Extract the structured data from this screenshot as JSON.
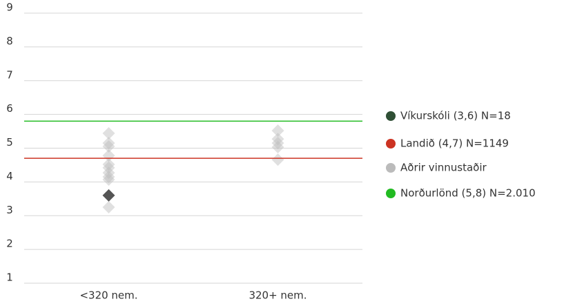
{
  "chart_data": {
    "type": "scatter",
    "categories": [
      "<320 nem.",
      "320+ nem."
    ],
    "ylim": [
      1,
      9
    ],
    "yticks": [
      1,
      2,
      3,
      4,
      5,
      6,
      7,
      8,
      9
    ],
    "grid": true,
    "series": [
      {
        "name": "Víkurskóli (3,6) N=18",
        "kind": "points",
        "color": "#555555",
        "legend_color": "#2f4f35",
        "values": [
          [
            3.6
          ],
          []
        ]
      },
      {
        "name": "Landið (4,7) N=1149",
        "kind": "line",
        "color": "#cc3322",
        "value": 4.7
      },
      {
        "name": "Aðrir vinnustaðir",
        "kind": "points",
        "color": "#bbbbbb",
        "values": [
          [
            5.44,
            5.15,
            5.05,
            4.78,
            4.52,
            4.42,
            4.27,
            4.15,
            4.07,
            3.25
          ],
          [
            5.52,
            5.27,
            5.15,
            5.03,
            4.66
          ]
        ]
      },
      {
        "name": "Norðurlönd (5,8) N=2.010",
        "kind": "line",
        "color": "#22bb22",
        "value": 5.8
      }
    ]
  }
}
